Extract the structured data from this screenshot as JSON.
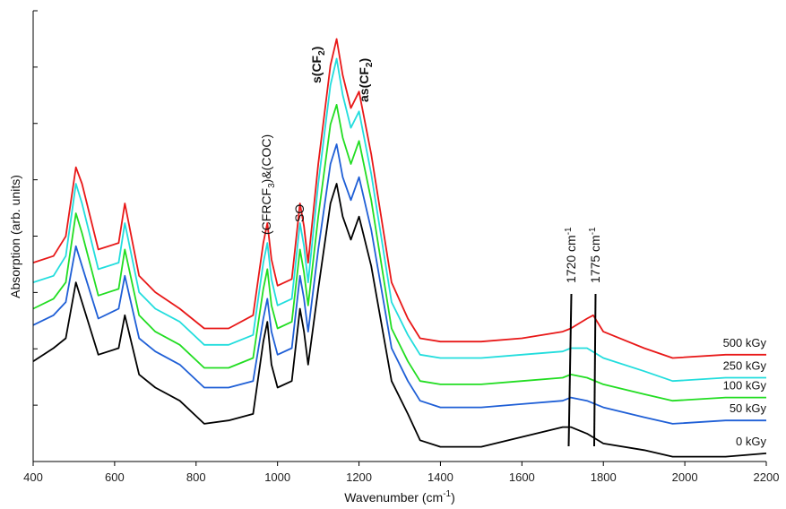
{
  "chart_data": {
    "type": "line",
    "xlabel_main": "Wavenumber (cm",
    "xlabel_sup": "-1",
    "xlabel_close": ")",
    "ylabel": "Absorption (arb. units)",
    "xlim": [
      400,
      2200
    ],
    "x_ticks": [
      "400",
      "600",
      "800",
      "1000",
      "1200",
      "1400",
      "1600",
      "1800",
      "2000",
      "2200"
    ],
    "y_ticks_count": 8,
    "grid": false,
    "series": [
      {
        "name": "0 kGy",
        "color": "#000000",
        "points": [
          [
            400,
            -0.54
          ],
          [
            450,
            -0.5
          ],
          [
            480,
            -0.47
          ],
          [
            505,
            -0.3
          ],
          [
            520,
            -0.36
          ],
          [
            560,
            -0.52
          ],
          [
            610,
            -0.5
          ],
          [
            625,
            -0.4
          ],
          [
            660,
            -0.58
          ],
          [
            700,
            -0.62
          ],
          [
            760,
            -0.66
          ],
          [
            820,
            -0.73
          ],
          [
            880,
            -0.72
          ],
          [
            940,
            -0.7
          ],
          [
            965,
            -0.48
          ],
          [
            975,
            -0.42
          ],
          [
            985,
            -0.55
          ],
          [
            1000,
            -0.62
          ],
          [
            1035,
            -0.6
          ],
          [
            1055,
            -0.38
          ],
          [
            1065,
            -0.45
          ],
          [
            1075,
            -0.55
          ],
          [
            1100,
            -0.32
          ],
          [
            1130,
            -0.06
          ],
          [
            1145,
            0.0
          ],
          [
            1160,
            -0.1
          ],
          [
            1180,
            -0.17
          ],
          [
            1200,
            -0.1
          ],
          [
            1230,
            -0.25
          ],
          [
            1280,
            -0.6
          ],
          [
            1320,
            -0.7
          ],
          [
            1350,
            -0.78
          ],
          [
            1400,
            -0.8
          ],
          [
            1500,
            -0.8
          ],
          [
            1600,
            -0.77
          ],
          [
            1700,
            -0.74
          ],
          [
            1720,
            -0.74
          ],
          [
            1760,
            -0.76
          ],
          [
            1800,
            -0.79
          ],
          [
            1900,
            -0.81
          ],
          [
            1970,
            -0.83
          ],
          [
            2100,
            -0.83
          ],
          [
            2200,
            -0.82
          ]
        ]
      },
      {
        "name": "50 kGy",
        "color": "#1f5fd6",
        "points": [
          [
            400,
            -0.43
          ],
          [
            450,
            -0.4
          ],
          [
            480,
            -0.36
          ],
          [
            505,
            -0.19
          ],
          [
            520,
            -0.25
          ],
          [
            560,
            -0.41
          ],
          [
            610,
            -0.38
          ],
          [
            625,
            -0.28
          ],
          [
            660,
            -0.47
          ],
          [
            700,
            -0.51
          ],
          [
            760,
            -0.55
          ],
          [
            820,
            -0.62
          ],
          [
            880,
            -0.62
          ],
          [
            940,
            -0.6
          ],
          [
            965,
            -0.41
          ],
          [
            975,
            -0.35
          ],
          [
            985,
            -0.45
          ],
          [
            1000,
            -0.52
          ],
          [
            1035,
            -0.5
          ],
          [
            1055,
            -0.28
          ],
          [
            1065,
            -0.35
          ],
          [
            1075,
            -0.45
          ],
          [
            1100,
            -0.2
          ],
          [
            1130,
            0.06
          ],
          [
            1145,
            0.12
          ],
          [
            1160,
            0.02
          ],
          [
            1180,
            -0.05
          ],
          [
            1200,
            0.02
          ],
          [
            1230,
            -0.14
          ],
          [
            1280,
            -0.5
          ],
          [
            1320,
            -0.6
          ],
          [
            1350,
            -0.66
          ],
          [
            1400,
            -0.68
          ],
          [
            1500,
            -0.68
          ],
          [
            1600,
            -0.67
          ],
          [
            1700,
            -0.66
          ],
          [
            1720,
            -0.65
          ],
          [
            1760,
            -0.66
          ],
          [
            1800,
            -0.68
          ],
          [
            1900,
            -0.71
          ],
          [
            1970,
            -0.73
          ],
          [
            2100,
            -0.72
          ],
          [
            2200,
            -0.72
          ]
        ]
      },
      {
        "name": "100 kGy",
        "color": "#22dd22",
        "points": [
          [
            400,
            -0.38
          ],
          [
            450,
            -0.35
          ],
          [
            480,
            -0.3
          ],
          [
            505,
            -0.09
          ],
          [
            520,
            -0.15
          ],
          [
            560,
            -0.34
          ],
          [
            610,
            -0.32
          ],
          [
            625,
            -0.2
          ],
          [
            660,
            -0.4
          ],
          [
            700,
            -0.45
          ],
          [
            760,
            -0.49
          ],
          [
            820,
            -0.56
          ],
          [
            880,
            -0.56
          ],
          [
            940,
            -0.53
          ],
          [
            965,
            -0.32
          ],
          [
            975,
            -0.26
          ],
          [
            985,
            -0.37
          ],
          [
            1000,
            -0.44
          ],
          [
            1035,
            -0.42
          ],
          [
            1055,
            -0.2
          ],
          [
            1065,
            -0.27
          ],
          [
            1075,
            -0.37
          ],
          [
            1100,
            -0.1
          ],
          [
            1130,
            0.18
          ],
          [
            1145,
            0.24
          ],
          [
            1160,
            0.14
          ],
          [
            1180,
            0.06
          ],
          [
            1200,
            0.13
          ],
          [
            1230,
            -0.05
          ],
          [
            1280,
            -0.44
          ],
          [
            1320,
            -0.54
          ],
          [
            1350,
            -0.6
          ],
          [
            1400,
            -0.61
          ],
          [
            1500,
            -0.61
          ],
          [
            1600,
            -0.6
          ],
          [
            1700,
            -0.59
          ],
          [
            1720,
            -0.58
          ],
          [
            1760,
            -0.59
          ],
          [
            1800,
            -0.61
          ],
          [
            1900,
            -0.64
          ],
          [
            1970,
            -0.66
          ],
          [
            2100,
            -0.65
          ],
          [
            2200,
            -0.65
          ]
        ]
      },
      {
        "name": "250 kGy",
        "color": "#22dddd",
        "points": [
          [
            400,
            -0.3
          ],
          [
            450,
            -0.28
          ],
          [
            480,
            -0.22
          ],
          [
            505,
            0.0
          ],
          [
            520,
            -0.06
          ],
          [
            560,
            -0.26
          ],
          [
            610,
            -0.24
          ],
          [
            625,
            -0.12
          ],
          [
            660,
            -0.33
          ],
          [
            700,
            -0.38
          ],
          [
            760,
            -0.42
          ],
          [
            820,
            -0.49
          ],
          [
            880,
            -0.49
          ],
          [
            940,
            -0.46
          ],
          [
            965,
            -0.24
          ],
          [
            975,
            -0.18
          ],
          [
            985,
            -0.29
          ],
          [
            1000,
            -0.37
          ],
          [
            1035,
            -0.35
          ],
          [
            1055,
            -0.12
          ],
          [
            1065,
            -0.19
          ],
          [
            1075,
            -0.3
          ],
          [
            1100,
            0.0
          ],
          [
            1130,
            0.3
          ],
          [
            1145,
            0.38
          ],
          [
            1160,
            0.27
          ],
          [
            1180,
            0.17
          ],
          [
            1200,
            0.22
          ],
          [
            1230,
            0.03
          ],
          [
            1280,
            -0.36
          ],
          [
            1320,
            -0.46
          ],
          [
            1350,
            -0.52
          ],
          [
            1400,
            -0.53
          ],
          [
            1500,
            -0.53
          ],
          [
            1600,
            -0.52
          ],
          [
            1700,
            -0.51
          ],
          [
            1720,
            -0.5
          ],
          [
            1760,
            -0.5
          ],
          [
            1800,
            -0.53
          ],
          [
            1900,
            -0.57
          ],
          [
            1970,
            -0.6
          ],
          [
            2100,
            -0.59
          ],
          [
            2200,
            -0.59
          ]
        ]
      },
      {
        "name": "500 kGy",
        "color": "#e81818",
        "points": [
          [
            400,
            -0.24
          ],
          [
            450,
            -0.22
          ],
          [
            480,
            -0.16
          ],
          [
            505,
            0.05
          ],
          [
            520,
            0.0
          ],
          [
            560,
            -0.2
          ],
          [
            610,
            -0.18
          ],
          [
            625,
            -0.06
          ],
          [
            660,
            -0.28
          ],
          [
            700,
            -0.33
          ],
          [
            760,
            -0.38
          ],
          [
            820,
            -0.44
          ],
          [
            880,
            -0.44
          ],
          [
            940,
            -0.4
          ],
          [
            965,
            -0.18
          ],
          [
            975,
            -0.12
          ],
          [
            985,
            -0.23
          ],
          [
            1000,
            -0.31
          ],
          [
            1035,
            -0.29
          ],
          [
            1055,
            -0.06
          ],
          [
            1065,
            -0.13
          ],
          [
            1075,
            -0.24
          ],
          [
            1100,
            0.06
          ],
          [
            1130,
            0.36
          ],
          [
            1145,
            0.44
          ],
          [
            1160,
            0.33
          ],
          [
            1180,
            0.23
          ],
          [
            1200,
            0.28
          ],
          [
            1230,
            0.09
          ],
          [
            1280,
            -0.3
          ],
          [
            1320,
            -0.41
          ],
          [
            1350,
            -0.47
          ],
          [
            1400,
            -0.48
          ],
          [
            1500,
            -0.48
          ],
          [
            1600,
            -0.47
          ],
          [
            1700,
            -0.45
          ],
          [
            1720,
            -0.44
          ],
          [
            1760,
            -0.41
          ],
          [
            1775,
            -0.4
          ],
          [
            1800,
            -0.45
          ],
          [
            1900,
            -0.5
          ],
          [
            1970,
            -0.53
          ],
          [
            2100,
            -0.52
          ],
          [
            2200,
            -0.52
          ]
        ]
      }
    ],
    "annotations": {
      "cfrcf3_main": "(CFRCF",
      "cfrcf3_sub": "3",
      "cfrcf3_tail": ")&(COC)",
      "so": "SO",
      "s_cf2_main": "s(CF",
      "s_cf2_sub": "2",
      "s_cf2_tail": ")",
      "as_cf2_main": "as(CF",
      "as_cf2_sub": "2",
      "as_cf2_tail": ")",
      "w1720_main": "1720 cm",
      "w1720_sup": "-1",
      "w1775_main": "1775 cm",
      "w1775_sup": "-1"
    }
  }
}
